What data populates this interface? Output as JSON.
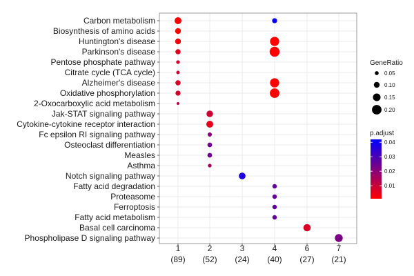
{
  "chart_data": {
    "type": "scatter",
    "x_categories": [
      {
        "top": "1",
        "bottom": "(89)"
      },
      {
        "top": "2",
        "bottom": "(52)"
      },
      {
        "top": "3",
        "bottom": "(24)"
      },
      {
        "top": "4",
        "bottom": "(40)"
      },
      {
        "top": "6",
        "bottom": "(27)"
      },
      {
        "top": "7",
        "bottom": "(21)"
      }
    ],
    "y_categories": [
      "Carbon metabolism",
      "Biosynthesis of amino acids",
      "Huntington's disease",
      "Parkinson's disease",
      "Pentose phosphate pathway",
      "Citrate cycle (TCA cycle)",
      "Alzheimer's disease",
      "Oxidative phosphorylation",
      "2-Oxocarboxylic acid metabolism",
      "Jak-STAT signaling pathway",
      "Cytokine-cytokine receptor interaction",
      "Fc epsilon RI signaling pathway",
      "Osteoclast differentiation",
      "Measles",
      "Asthma",
      "Notch signaling pathway",
      "Fatty acid degradation",
      "Proteasome",
      "Ferroptosis",
      "Fatty acid metabolism",
      "Basal cell carcinoma",
      "Phospholipase D signaling pathway"
    ],
    "points": [
      {
        "x": "1",
        "y": "Carbon metabolism",
        "gene_ratio": 0.13,
        "p_adjust": 0.001
      },
      {
        "x": "1",
        "y": "Biosynthesis of amino acids",
        "gene_ratio": 0.1,
        "p_adjust": 0.001
      },
      {
        "x": "1",
        "y": "Huntington's disease",
        "gene_ratio": 0.1,
        "p_adjust": 0.003
      },
      {
        "x": "1",
        "y": "Parkinson's disease",
        "gene_ratio": 0.085,
        "p_adjust": 0.006
      },
      {
        "x": "1",
        "y": "Pentose phosphate pathway",
        "gene_ratio": 0.045,
        "p_adjust": 0.008
      },
      {
        "x": "1",
        "y": "Citrate cycle (TCA cycle)",
        "gene_ratio": 0.04,
        "p_adjust": 0.009
      },
      {
        "x": "1",
        "y": "Alzheimer's disease",
        "gene_ratio": 0.085,
        "p_adjust": 0.007
      },
      {
        "x": "1",
        "y": "Oxidative phosphorylation",
        "gene_ratio": 0.08,
        "p_adjust": 0.008
      },
      {
        "x": "1",
        "y": "2-Oxocarboxylic acid metabolism",
        "gene_ratio": 0.02,
        "p_adjust": 0.012
      },
      {
        "x": "2",
        "y": "Jak-STAT signaling pathway",
        "gene_ratio": 0.12,
        "p_adjust": 0.009
      },
      {
        "x": "2",
        "y": "Cytokine-cytokine receptor interaction",
        "gene_ratio": 0.13,
        "p_adjust": 0.005
      },
      {
        "x": "2",
        "y": "Fc epsilon RI signaling pathway",
        "gene_ratio": 0.06,
        "p_adjust": 0.02
      },
      {
        "x": "2",
        "y": "Osteoclast differentiation",
        "gene_ratio": 0.07,
        "p_adjust": 0.024
      },
      {
        "x": "2",
        "y": "Measles",
        "gene_ratio": 0.07,
        "p_adjust": 0.024
      },
      {
        "x": "2",
        "y": "Asthma",
        "gene_ratio": 0.045,
        "p_adjust": 0.015
      },
      {
        "x": "3",
        "y": "Notch signaling pathway",
        "gene_ratio": 0.125,
        "p_adjust": 0.037
      },
      {
        "x": "4",
        "y": "Carbon metabolism",
        "gene_ratio": 0.08,
        "p_adjust": 0.041
      },
      {
        "x": "4",
        "y": "Huntington's disease",
        "gene_ratio": 0.19,
        "p_adjust": 0.001
      },
      {
        "x": "4",
        "y": "Parkinson's disease",
        "gene_ratio": 0.21,
        "p_adjust": 0.001
      },
      {
        "x": "4",
        "y": "Alzheimer's disease",
        "gene_ratio": 0.19,
        "p_adjust": 0.001
      },
      {
        "x": "4",
        "y": "Oxidative phosphorylation",
        "gene_ratio": 0.2,
        "p_adjust": 0.001
      },
      {
        "x": "4",
        "y": "Fatty acid degradation",
        "gene_ratio": 0.065,
        "p_adjust": 0.026
      },
      {
        "x": "4",
        "y": "Proteasome",
        "gene_ratio": 0.065,
        "p_adjust": 0.026
      },
      {
        "x": "4",
        "y": "Ferroptosis",
        "gene_ratio": 0.065,
        "p_adjust": 0.026
      },
      {
        "x": "4",
        "y": "Fatty acid metabolism",
        "gene_ratio": 0.065,
        "p_adjust": 0.026
      },
      {
        "x": "6",
        "y": "Basal cell carcinoma",
        "gene_ratio": 0.14,
        "p_adjust": 0.007
      },
      {
        "x": "7",
        "y": "Phospholipase D signaling pathway",
        "gene_ratio": 0.155,
        "p_adjust": 0.022
      }
    ],
    "size_legend": {
      "title": "GeneRatio",
      "values": [
        0.05,
        0.1,
        0.15,
        0.2
      ],
      "labels": [
        "0.05",
        "0.10",
        "0.15",
        "0.20"
      ]
    },
    "color_legend": {
      "title": "p.adjust",
      "range": [
        0.001,
        0.042
      ],
      "ticks": [
        0.01,
        0.02,
        0.03,
        0.04
      ],
      "labels": [
        "0.01",
        "0.02",
        "0.03",
        "0.04"
      ],
      "low_color": "#ff0000",
      "high_color": "#0000ff"
    },
    "grid": true
  }
}
